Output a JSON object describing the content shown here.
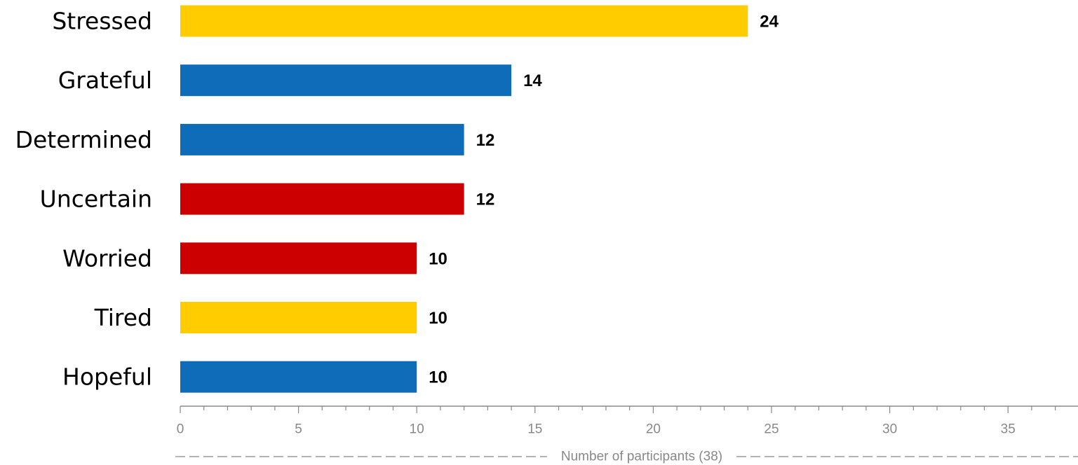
{
  "chart_data": {
    "type": "bar",
    "orientation": "horizontal",
    "categories": [
      "Stressed",
      "Grateful",
      "Determined",
      "Uncertain",
      "Worried",
      "Tired",
      "Hopeful"
    ],
    "values": [
      24,
      14,
      12,
      12,
      10,
      10,
      10
    ],
    "bar_colors": [
      "#FFCC00",
      "#0F6CB8",
      "#0F6CB8",
      "#CC0000",
      "#CC0000",
      "#FFCC00",
      "#0F6CB8"
    ],
    "xlabel": "Number of participants (38)",
    "xlim": [
      0,
      38
    ],
    "x_ticks": [
      0,
      5,
      10,
      15,
      20,
      25,
      30,
      35
    ],
    "axis_color": "#888888",
    "grid": false,
    "legend": "none"
  }
}
